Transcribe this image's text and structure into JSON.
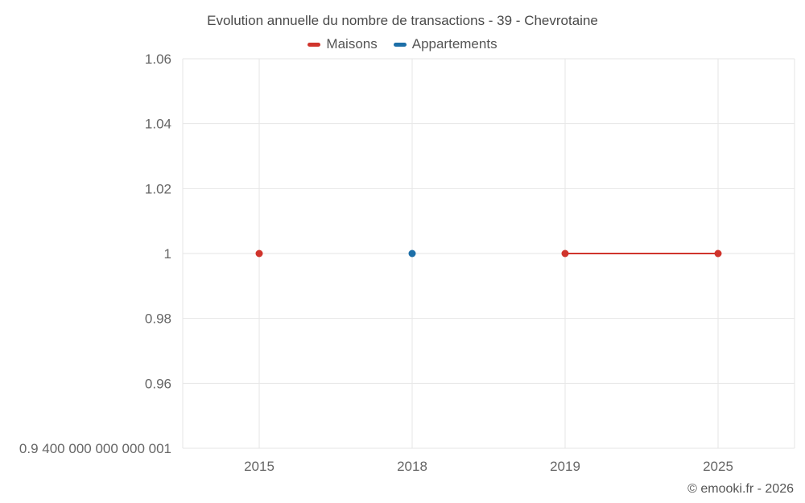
{
  "chart_data": {
    "type": "line",
    "title": "Evolution annuelle du nombre de transactions - 39 - Chevrotaine",
    "categories": [
      "2015",
      "2018",
      "2019",
      "2025"
    ],
    "series": [
      {
        "name": "Maisons",
        "color": "#d0342c",
        "values": [
          1,
          null,
          1,
          1
        ]
      },
      {
        "name": "Appartements",
        "color": "#1d6fa8",
        "values": [
          null,
          1,
          null,
          null
        ]
      }
    ],
    "ylim": [
      0.94,
      1.06
    ],
    "yticks": [
      {
        "value": 0.94,
        "label": "0.9 400 000 000 000 001"
      },
      {
        "value": 0.96,
        "label": "0.96"
      },
      {
        "value": 0.98,
        "label": "0.98"
      },
      {
        "value": 1.0,
        "label": "1"
      },
      {
        "value": 1.02,
        "label": "1.02"
      },
      {
        "value": 1.04,
        "label": "1.04"
      },
      {
        "value": 1.06,
        "label": "1.06"
      }
    ],
    "grid": true,
    "legend_position": "top",
    "marker_radius": 4.5,
    "line_width": 2
  },
  "footer": {
    "credit": "© emooki.fr - 2026"
  },
  "colors": {
    "grid": "#e6e6e6",
    "axis_text": "#666666",
    "title_text": "#4a4a4a"
  }
}
